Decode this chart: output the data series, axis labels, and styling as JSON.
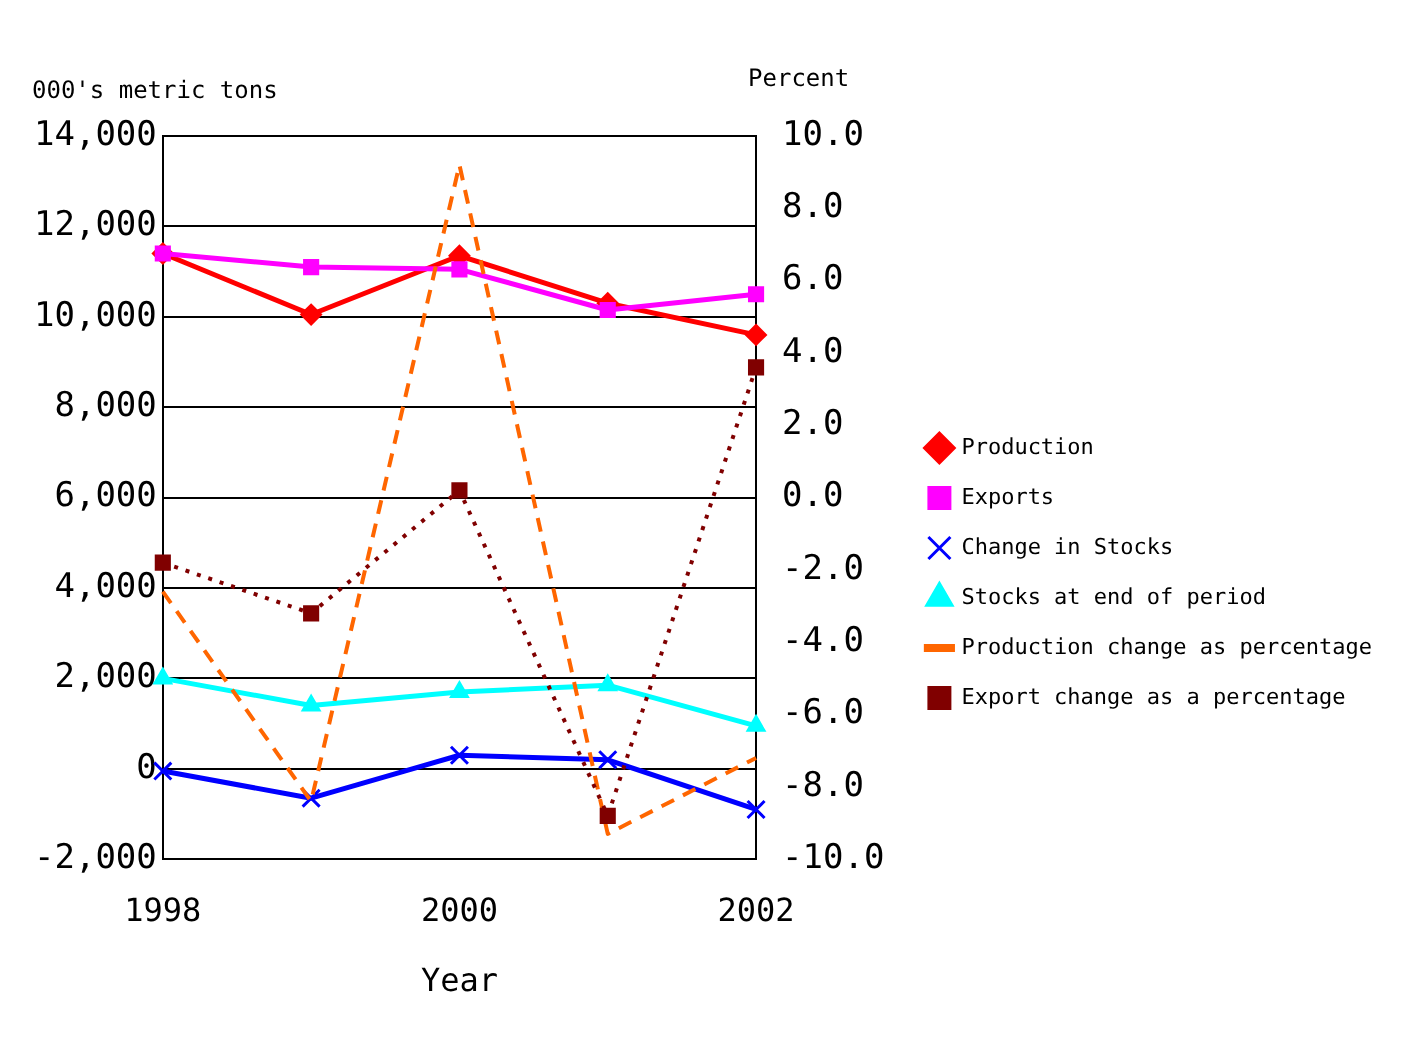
{
  "chart_data": {
    "type": "line",
    "categories": [
      "1998",
      null,
      "2000",
      null,
      "2002"
    ],
    "xlabel": "Year",
    "ylabel": "000's metric tons",
    "y2label": "Percent",
    "series": [
      {
        "name": "Production",
        "color": "#ff0000",
        "marker": "diamond",
        "line_style": "solid",
        "values": [
          11400,
          10050,
          11350,
          10300,
          9600
        ]
      },
      {
        "name": "Exports",
        "color": "#ff00ff",
        "marker": "square",
        "line_style": "solid",
        "values": [
          11400,
          11100,
          11050,
          10150,
          10500
        ]
      },
      {
        "name": "Change in Stocks",
        "color": "#0000ff",
        "marker": "cross",
        "line_style": "solid",
        "values": [
          -50,
          -650,
          300,
          200,
          -900
        ]
      },
      {
        "name": "Stocks at end of period",
        "color": "#00ffff",
        "marker": "triangle",
        "line_style": "solid",
        "values": [
          2000,
          1400,
          1700,
          1850,
          950
        ]
      },
      {
        "name": "Production change as percentage",
        "color": "#ff6600",
        "marker": "none",
        "line_style": "dashed",
        "axis": "y2",
        "values": [
          -2.6,
          -8.4,
          9.2,
          -9.3,
          -7.2
        ]
      },
      {
        "name": "Export change as a percentage",
        "color": "#800000",
        "marker": "square",
        "line_style": "dotted",
        "axis": "y2",
        "values": [
          -1.8,
          -3.2,
          0.2,
          -8.8,
          3.6
        ]
      }
    ],
    "ylim": [
      -2000,
      14000
    ],
    "yticks": [
      {
        "value": -2000,
        "label": "-2,000"
      },
      0,
      {
        "value": 2000,
        "label": "2,000"
      },
      {
        "value": 4000,
        "label": "4,000"
      },
      {
        "value": 6000,
        "label": "6,000"
      },
      {
        "value": 8000,
        "label": "8,000"
      },
      {
        "value": 10000,
        "label": "10,000"
      },
      {
        "value": 12000,
        "label": "12,000"
      },
      {
        "value": 14000,
        "label": "14,000"
      }
    ],
    "y2lim": [
      -10,
      10
    ],
    "y2ticks": [
      {
        "value": -10,
        "label": "-10.0"
      },
      {
        "value": -8,
        "label": "-8.0"
      },
      {
        "value": -6,
        "label": "-6.0"
      },
      {
        "value": -4,
        "label": "-4.0"
      },
      {
        "value": -2,
        "label": "-2.0"
      },
      {
        "value": 0,
        "label": "0.0"
      },
      {
        "value": 2,
        "label": "2.0"
      },
      {
        "value": 4,
        "label": "4.0"
      },
      {
        "value": 6,
        "label": "6.0"
      },
      {
        "value": 8,
        "label": "8.0"
      },
      {
        "value": 10,
        "label": "10.0"
      }
    ],
    "grid": "y",
    "legend": "right"
  }
}
